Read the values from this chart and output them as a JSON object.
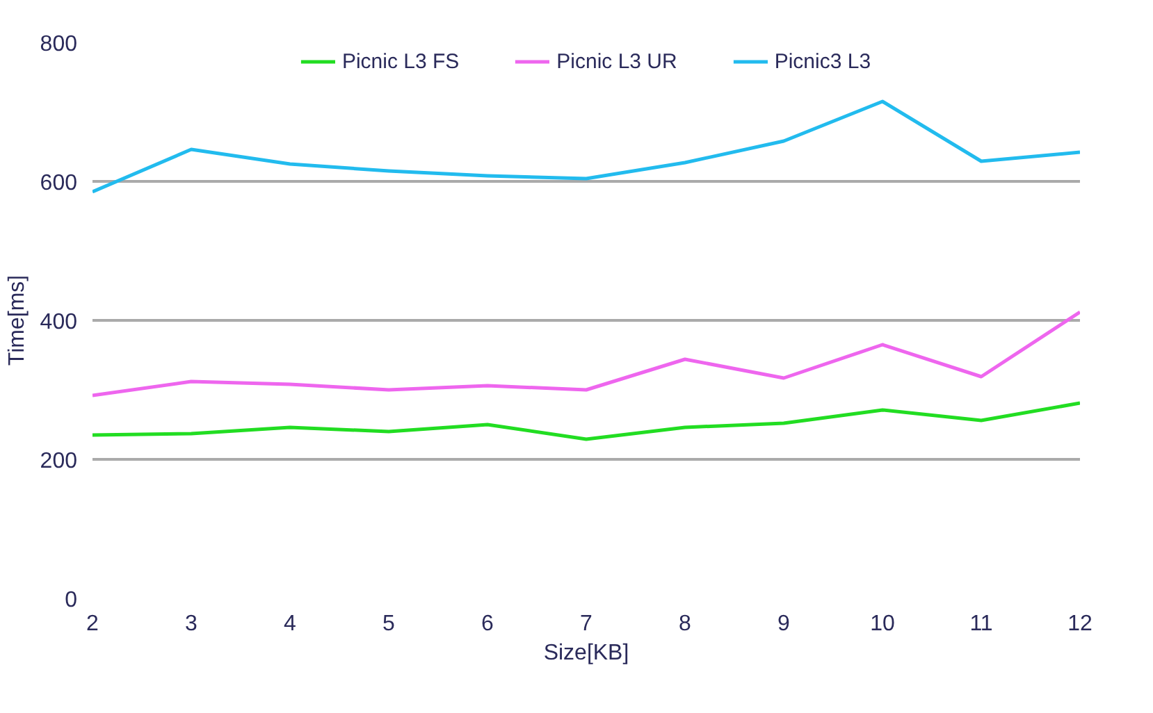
{
  "chart_data": {
    "type": "line",
    "xlabel": "Size[KB]",
    "ylabel": "Time[ms]",
    "x": [
      2,
      3,
      4,
      5,
      6,
      7,
      8,
      9,
      10,
      11,
      12
    ],
    "series": [
      {
        "name": "Picnic L3 FS",
        "color": "#22dd22",
        "values": [
          235,
          237,
          246,
          240,
          250,
          229,
          246,
          252,
          271,
          256,
          281
        ]
      },
      {
        "name": "Picnic L3 UR",
        "color": "#ee66ee",
        "values": [
          292,
          312,
          308,
          300,
          306,
          300,
          344,
          317,
          365,
          319,
          412
        ]
      },
      {
        "name": "Picnic3 L3",
        "color": "#22bbee",
        "values": [
          585,
          646,
          625,
          615,
          608,
          604,
          627,
          658,
          715,
          629,
          642
        ]
      }
    ],
    "xlim": [
      2,
      12
    ],
    "xticks": [
      2,
      3,
      4,
      5,
      6,
      7,
      8,
      9,
      10,
      11,
      12
    ],
    "ylim": [
      0,
      800
    ],
    "yticks": [
      0,
      200,
      400,
      600,
      800
    ],
    "grid": "y",
    "legend": "top",
    "marker": "none",
    "line_style": "solid"
  }
}
